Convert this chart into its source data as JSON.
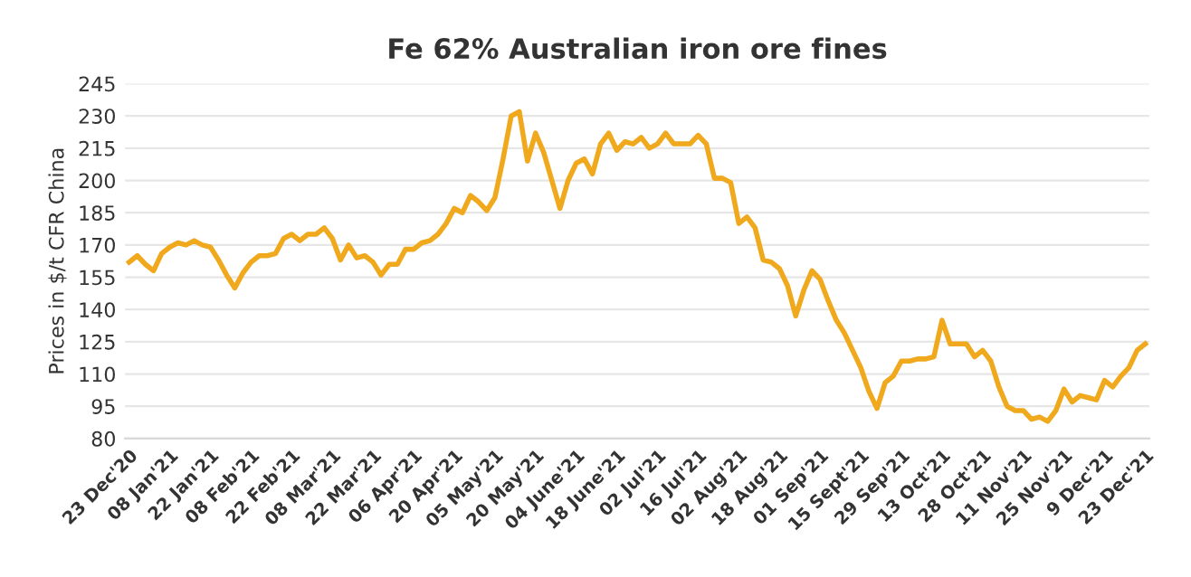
{
  "chart_data": {
    "type": "line",
    "title": "Fe 62% Australian iron ore fines",
    "ylabel": "Prices in $/t CFR China",
    "categories": [
      "23 Dec'20",
      null,
      null,
      null,
      null,
      "08 Jan'21",
      null,
      null,
      null,
      null,
      "22 Jan'21",
      null,
      null,
      null,
      null,
      "08 Feb'21",
      null,
      null,
      null,
      null,
      "22 Feb'21",
      null,
      null,
      null,
      null,
      "08 Mar'21",
      null,
      null,
      null,
      null,
      "22 Mar'21",
      null,
      null,
      null,
      null,
      "06 Apr'21",
      null,
      null,
      null,
      null,
      "20 Apr'21",
      null,
      null,
      null,
      null,
      "05 May'21",
      null,
      null,
      null,
      null,
      "20 May'21",
      null,
      null,
      null,
      null,
      "04 June'21",
      null,
      null,
      null,
      null,
      "18 June'21",
      null,
      null,
      null,
      null,
      "02 Jul'21",
      null,
      null,
      null,
      null,
      "16 Jul'21",
      null,
      null,
      null,
      null,
      "02 Aug'21",
      null,
      null,
      null,
      null,
      "18 Aug'21",
      null,
      null,
      null,
      null,
      "01 Sep'21",
      null,
      null,
      null,
      null,
      "15 Sept'21",
      null,
      null,
      null,
      null,
      "29 Sep'21",
      null,
      null,
      null,
      null,
      "13 Oct'21",
      null,
      null,
      null,
      null,
      "28 Oct'21",
      null,
      null,
      null,
      null,
      "11 Nov'21",
      null,
      null,
      null,
      null,
      "25 Nov'21",
      null,
      null,
      null,
      null,
      "9 Dec'21",
      null,
      null,
      null,
      null,
      "23 Dec'21"
    ],
    "series": [
      {
        "color": "#f0a81c",
        "values": [
          162,
          165,
          161,
          158,
          166,
          169,
          171,
          170,
          172,
          170,
          169,
          163,
          156,
          150,
          157,
          162,
          165,
          165,
          166,
          173,
          175,
          172,
          175,
          175,
          178,
          173,
          163,
          170,
          164,
          165,
          162,
          156,
          161,
          161,
          168,
          168,
          171,
          172,
          175,
          180,
          187,
          185,
          193,
          190,
          186,
          192,
          210,
          230,
          232,
          209,
          222,
          213,
          200,
          187,
          200,
          208,
          210,
          203,
          217,
          222,
          214,
          218,
          217,
          220,
          215,
          217,
          222,
          217,
          217,
          217,
          221,
          217,
          201,
          201,
          199,
          180,
          183,
          178,
          163,
          162,
          159,
          151,
          137,
          149,
          158,
          154,
          144,
          135,
          129,
          121,
          113,
          102,
          94,
          106,
          109,
          116,
          116,
          117,
          117,
          118,
          135,
          124,
          124,
          124,
          118,
          121,
          116,
          104,
          95,
          93,
          93,
          89,
          90,
          88,
          93,
          103,
          97,
          100,
          99,
          98,
          107,
          104,
          109,
          113,
          121,
          124
        ]
      }
    ],
    "ylim": [
      80,
      245
    ],
    "yticks": [
      80,
      95,
      110,
      125,
      140,
      155,
      170,
      185,
      200,
      215,
      230,
      245
    ],
    "grid": "y",
    "marker": "none",
    "line_style": "solid"
  }
}
